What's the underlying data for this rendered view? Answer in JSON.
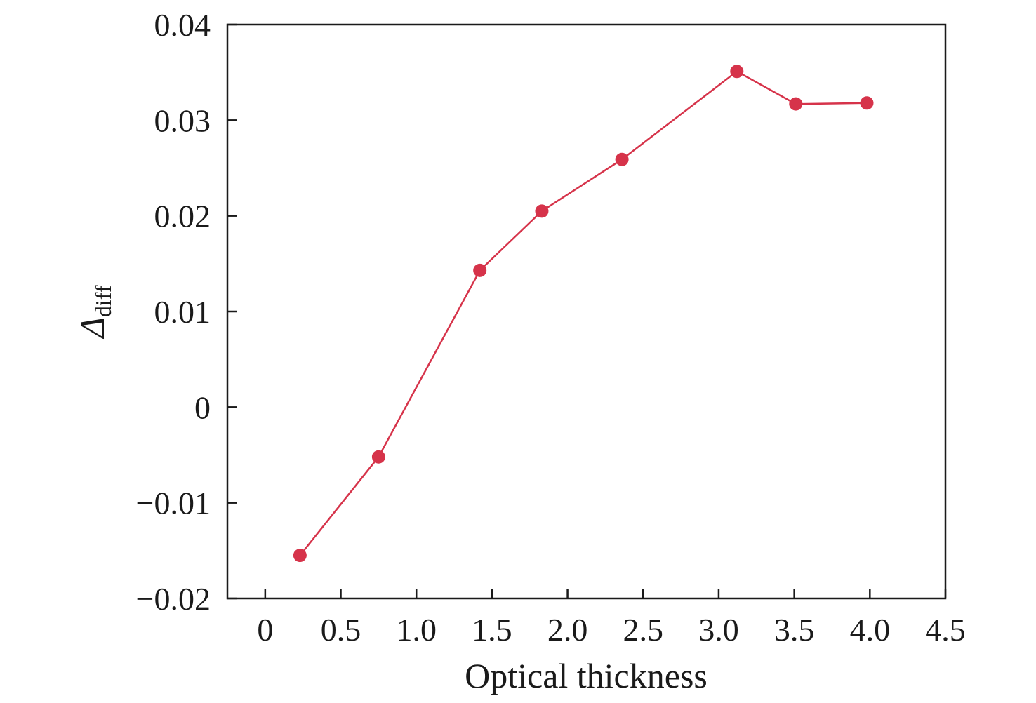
{
  "chart_data": {
    "type": "line",
    "xlabel": "Optical thickness",
    "ylabel": {
      "main": "Δ",
      "sub": "diff"
    },
    "xlim": [
      -0.25,
      4.5
    ],
    "ylim": [
      -0.02,
      0.04
    ],
    "x_ticks": [
      0,
      0.5,
      1.0,
      1.5,
      2.0,
      2.5,
      3.0,
      3.5,
      4.0,
      4.5
    ],
    "x_tick_labels": [
      "0",
      "0.5",
      "1.0",
      "1.5",
      "2.0",
      "2.5",
      "3.0",
      "3.5",
      "4.0",
      "4.5"
    ],
    "y_ticks": [
      -0.02,
      -0.01,
      0,
      0.01,
      0.02,
      0.03,
      0.04
    ],
    "y_tick_labels": [
      "−0.02",
      "−0.01",
      "0",
      "0.01",
      "0.02",
      "0.03",
      "0.04"
    ],
    "grid": false,
    "legend": "none",
    "series": [
      {
        "color": "#d6334a",
        "marker": "circle",
        "x": [
          0.23,
          0.75,
          1.42,
          1.83,
          2.36,
          3.12,
          3.51,
          3.98
        ],
        "y": [
          -0.0155,
          -0.0052,
          0.0143,
          0.0205,
          0.0259,
          0.0351,
          0.0317,
          0.0318
        ]
      }
    ]
  }
}
